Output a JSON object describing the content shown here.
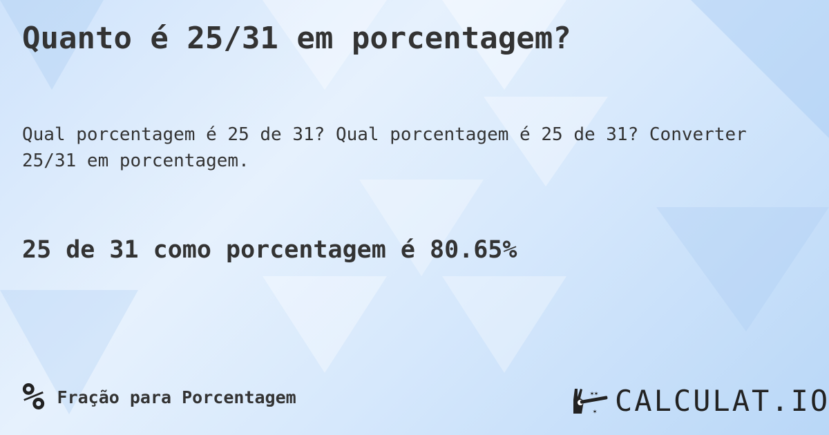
{
  "title": "Quanto é 25/31 em porcentagem?",
  "description": "Qual porcentagem é 25 de 31? Qual porcentagem é 25 de 31? Converter 25/31 em porcentagem.",
  "answer": "25 de 31 como porcentagem é 80.65%",
  "category": {
    "icon": "percent-icon",
    "symbol": "%",
    "label": "Fração para Porcentagem"
  },
  "logo": {
    "text": "CALCULAT.IO",
    "icon": "magic-hand-wand-icon"
  },
  "colors": {
    "text": "#333333",
    "background": "#d6e8fc"
  }
}
